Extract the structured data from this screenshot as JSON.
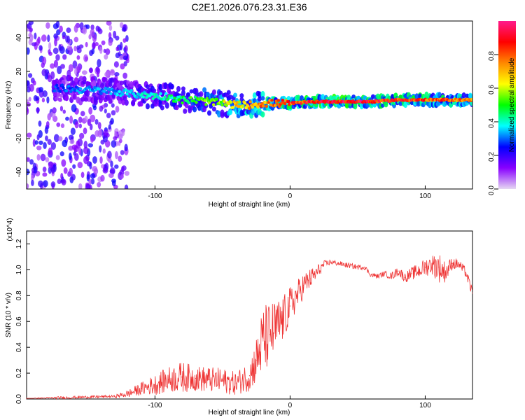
{
  "figure_title": "C2E1.2026.076.23.31.E36",
  "colors": {
    "snr_line": "#ee3333",
    "axis": "#000000",
    "background": "#ffffff"
  },
  "chart_data": [
    {
      "type": "heatmap",
      "name": "spectrogram",
      "xlabel": "Height of straight line (km)",
      "ylabel": "Frequency (Hz)",
      "xlim": [
        -195,
        135
      ],
      "ylim": [
        -50,
        50
      ],
      "xticks": [
        -100,
        0,
        100
      ],
      "xtick_labels": [
        "-100",
        "0",
        "100"
      ],
      "yticks": [
        -40,
        -20,
        0,
        20,
        40
      ],
      "ytick_labels": [
        "-40",
        "-20",
        "0",
        "20",
        "40"
      ],
      "colorbar": {
        "label": "Normalized spectral amplitude",
        "range": [
          0,
          1
        ],
        "ticks": [
          0,
          0.2,
          0.4,
          0.6,
          0.8
        ],
        "tick_labels": [
          "0.0",
          "0.2",
          "0.4",
          "0.6",
          "0.8"
        ],
        "colormap": [
          "#e6d8f2",
          "#8800ff",
          "#0000ff",
          "#00ffff",
          "#00ff00",
          "#ffff00",
          "#ff8800",
          "#ff0000",
          "#ff1a8c"
        ]
      },
      "ridge": {
        "x": [
          -170,
          -150,
          -130,
          -110,
          -90,
          -80,
          -70,
          -60,
          -50,
          -40,
          -30,
          -20,
          -10,
          0,
          20,
          40,
          60,
          80,
          100,
          120,
          135
        ],
        "freq": [
          10,
          9,
          8,
          6,
          5,
          3,
          3,
          2,
          1,
          0,
          0,
          1,
          1,
          1,
          2,
          2,
          2,
          3,
          3,
          3,
          3
        ],
        "amplitude": [
          0.3,
          0.35,
          0.35,
          0.4,
          0.45,
          0.5,
          0.55,
          0.6,
          0.65,
          0.7,
          0.75,
          0.8,
          0.85,
          0.88,
          0.95,
          0.97,
          0.95,
          0.92,
          0.9,
          0.85,
          0.8
        ]
      }
    },
    {
      "type": "line",
      "name": "snr",
      "xlabel": "Height of straight line (km)",
      "ylabel": "SNR (10 * v/v)",
      "y_multiplier": "(x10^4)",
      "xlim": [
        -195,
        135
      ],
      "ylim": [
        0,
        1.3
      ],
      "xticks": [
        -100,
        0,
        100
      ],
      "xtick_labels": [
        "-100",
        "0",
        "100"
      ],
      "yticks": [
        0,
        0.2,
        0.4,
        0.6,
        0.8,
        1.0,
        1.2
      ],
      "ytick_labels": [
        "0.0",
        "0.2",
        "0.4",
        "0.6",
        "0.8",
        "1.0",
        "1.2"
      ],
      "series": [
        {
          "name": "SNR",
          "x": [
            -195,
            -170,
            -150,
            -130,
            -120,
            -110,
            -100,
            -90,
            -80,
            -70,
            -60,
            -50,
            -40,
            -30,
            -25,
            -20,
            -15,
            -10,
            -5,
            0,
            5,
            10,
            15,
            20,
            25,
            30,
            35,
            40,
            45,
            50,
            55,
            60,
            65,
            70,
            75,
            80,
            85,
            90,
            95,
            100,
            105,
            110,
            115,
            120,
            125,
            130,
            135
          ],
          "y": [
            0.005,
            0.01,
            0.015,
            0.02,
            0.04,
            0.08,
            0.11,
            0.15,
            0.17,
            0.16,
            0.15,
            0.14,
            0.12,
            0.18,
            0.3,
            0.45,
            0.5,
            0.55,
            0.62,
            0.72,
            0.8,
            0.88,
            0.93,
            0.98,
            1.04,
            1.06,
            1.05,
            1.04,
            1.03,
            1.02,
            1.02,
            0.96,
            0.95,
            0.97,
            0.95,
            0.99,
            0.94,
            0.97,
            0.99,
            1.02,
            1.04,
            1.02,
            0.98,
            1.05,
            1.04,
            0.98,
            0.82
          ],
          "noise": [
            0.0,
            0.01,
            0.01,
            0.01,
            0.03,
            0.05,
            0.08,
            0.1,
            0.12,
            0.1,
            0.1,
            0.1,
            0.09,
            0.12,
            0.18,
            0.28,
            0.25,
            0.22,
            0.18,
            0.15,
            0.12,
            0.1,
            0.08,
            0.06,
            0.03,
            0.02,
            0.02,
            0.02,
            0.02,
            0.02,
            0.02,
            0.02,
            0.02,
            0.02,
            0.03,
            0.04,
            0.04,
            0.05,
            0.06,
            0.07,
            0.08,
            0.12,
            0.08,
            0.05,
            0.04,
            0.04,
            0.04
          ]
        }
      ]
    }
  ]
}
